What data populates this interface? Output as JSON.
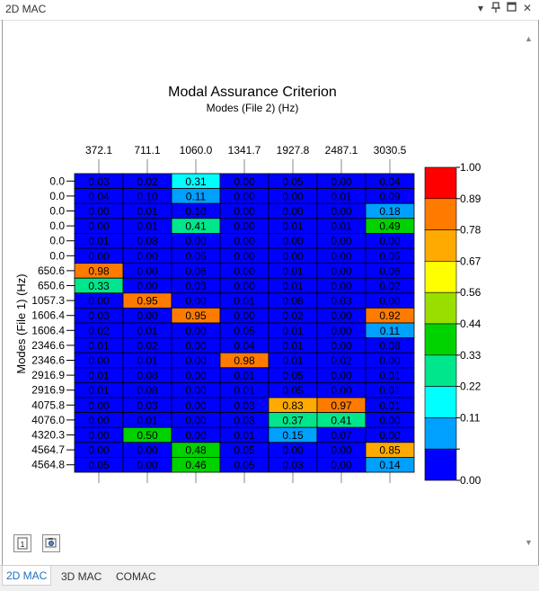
{
  "window": {
    "title": "2D MAC",
    "pin_icon": "pin-icon",
    "restore_icon": "restore-icon",
    "close_icon": "close-icon",
    "menu_icon": "chevron-down-icon"
  },
  "tabs": [
    {
      "label": "2D MAC",
      "active": true
    },
    {
      "label": "3D MAC",
      "active": false
    },
    {
      "label": "COMAC",
      "active": false
    }
  ],
  "toolbar": {
    "buttons": [
      {
        "icon": "page-one-icon",
        "label": "1"
      },
      {
        "icon": "capture-icon"
      }
    ]
  },
  "chart_data": {
    "type": "heatmap",
    "title": "Modal Assurance Criterion",
    "xlabel": "Modes (File 2) (Hz)",
    "ylabel": "Modes (File 1) (Hz)",
    "x_tick_labels": [
      "372.1",
      "711.1",
      "1060.0",
      "1341.7",
      "1927.8",
      "2487.1",
      "3030.5"
    ],
    "y_tick_labels": [
      "0.0",
      "0.0",
      "0.0",
      "0.0",
      "0.0",
      "0.0",
      "650.6",
      "650.6",
      "1057.3",
      "1606.4",
      "1606.4",
      "2346.6",
      "2346.6",
      "2916.9",
      "2916.9",
      "4075.8",
      "4076.0",
      "4320.3",
      "4564.7",
      "4564.8"
    ],
    "values": [
      [
        "0.03",
        "0.02",
        "0.31",
        "0.00",
        "0.05",
        "0.00",
        "0.04"
      ],
      [
        "0.04",
        "0.10",
        "0.11",
        "0.00",
        "0.00",
        "0.01",
        "0.09"
      ],
      [
        "0.00",
        "0.01",
        "0.10",
        "0.00",
        "0.00",
        "0.00",
        "0.18"
      ],
      [
        "0.00",
        "0.01",
        "0.41",
        "0.00",
        "0.01",
        "0.01",
        "0.49"
      ],
      [
        "0.01",
        "0.08",
        "0.00",
        "0.00",
        "0.00",
        "0.00",
        "0.00"
      ],
      [
        "0.00",
        "0.00",
        "0.05",
        "0.00",
        "0.00",
        "0.00",
        "0.05"
      ],
      [
        "0.98",
        "0.00",
        "0.06",
        "0.00",
        "0.01",
        "0.00",
        "0.06"
      ],
      [
        "0.33",
        "0.00",
        "0.03",
        "0.00",
        "0.01",
        "0.00",
        "0.02"
      ],
      [
        "0.00",
        "0.95",
        "0.00",
        "0.01",
        "0.06",
        "0.03",
        "0.00"
      ],
      [
        "0.03",
        "0.00",
        "0.95",
        "0.00",
        "0.02",
        "0.00",
        "0.92"
      ],
      [
        "0.02",
        "0.01",
        "0.00",
        "0.05",
        "0.01",
        "0.00",
        "0.11"
      ],
      [
        "0.01",
        "0.02",
        "0.00",
        "0.04",
        "0.01",
        "0.00",
        "0.08"
      ],
      [
        "0.00",
        "0.01",
        "0.00",
        "0.98",
        "0.01",
        "0.02",
        "0.00"
      ],
      [
        "0.01",
        "0.08",
        "0.00",
        "0.01",
        "0.05",
        "0.00",
        "0.01"
      ],
      [
        "0.01",
        "0.08",
        "0.00",
        "0.01",
        "0.05",
        "0.00",
        "0.01"
      ],
      [
        "0.00",
        "0.03",
        "0.00",
        "0.03",
        "0.83",
        "0.97",
        "0.01"
      ],
      [
        "0.00",
        "0.01",
        "0.00",
        "0.03",
        "0.37",
        "0.41",
        "0.00"
      ],
      [
        "0.00",
        "0.50",
        "0.00",
        "0.01",
        "0.15",
        "0.07",
        "0.00"
      ],
      [
        "0.00",
        "0.00",
        "0.48",
        "0.05",
        "0.00",
        "0.00",
        "0.85"
      ],
      [
        "0.05",
        "0.00",
        "0.46",
        "0.05",
        "0.03",
        "0.00",
        "0.14"
      ]
    ],
    "colorbar": {
      "tick_labels": [
        "1.00",
        "0.89",
        "0.78",
        "0.67",
        "0.56",
        "0.44",
        "0.33",
        "0.22",
        "0.11",
        "0.00"
      ],
      "colors_top_to_bottom": [
        "#ff0000",
        "#ff7b00",
        "#ffaa00",
        "#ffff00",
        "#9ade00",
        "#00d200",
        "#00e68c",
        "#00ffff",
        "#00a0ff",
        "#0000ff"
      ]
    },
    "grid": true,
    "legend": "right"
  }
}
